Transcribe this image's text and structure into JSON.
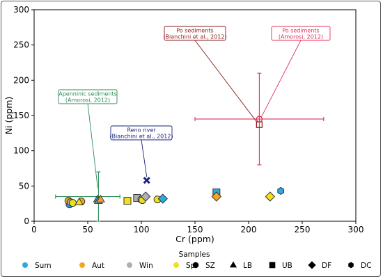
{
  "chart_data": {
    "type": "scatter",
    "xlabel": "Cr (ppm)",
    "ylabel": "Ni (ppm)",
    "xlim": [
      0,
      300
    ],
    "ylim": [
      0,
      300
    ],
    "xticks": [
      "0",
      "50",
      "100",
      "150",
      "200",
      "250",
      "300"
    ],
    "yticks": [
      "0",
      "50",
      "100",
      "150",
      "200",
      "250",
      "300"
    ],
    "grid": false,
    "legend": {
      "title": "Samples",
      "placement": "bottom",
      "seasons": [
        {
          "label": "Sum",
          "color": "#29abe2"
        },
        {
          "label": "Aut",
          "color": "#f5a623"
        },
        {
          "label": "Win",
          "color": "#b0b0b0"
        },
        {
          "label": "Spr",
          "color": "#f0e01a"
        }
      ],
      "sites": [
        {
          "label": "SZ",
          "shape": "circle"
        },
        {
          "label": "LB",
          "shape": "triangle"
        },
        {
          "label": "UB",
          "shape": "square"
        },
        {
          "label": "DF",
          "shape": "diamond"
        },
        {
          "label": "DC",
          "shape": "hexagon"
        }
      ]
    },
    "points": [
      {
        "x": 33,
        "y": 24,
        "season": "Sum",
        "site": "SZ"
      },
      {
        "x": 32,
        "y": 29,
        "season": "Aut",
        "site": "SZ"
      },
      {
        "x": 34,
        "y": 27,
        "season": "Win",
        "site": "SZ"
      },
      {
        "x": 36,
        "y": 26,
        "season": "Spr",
        "site": "SZ"
      },
      {
        "x": 44,
        "y": 28,
        "season": "Aut",
        "site": "SZ"
      },
      {
        "x": 42,
        "y": 27,
        "season": "Spr",
        "site": "LB"
      },
      {
        "x": 59,
        "y": 31,
        "season": "Sum",
        "site": "LB"
      },
      {
        "x": 60,
        "y": 29,
        "season": "Win",
        "site": "LB"
      },
      {
        "x": 62,
        "y": 31,
        "season": "Aut",
        "site": "LB"
      },
      {
        "x": 87,
        "y": 29,
        "season": "Spr",
        "site": "UB"
      },
      {
        "x": 96,
        "y": 33,
        "season": "Win",
        "site": "UB"
      },
      {
        "x": 100,
        "y": 31,
        "season": "Win",
        "site": "SZ"
      },
      {
        "x": 101,
        "y": 30,
        "season": "Spr",
        "site": "SZ"
      },
      {
        "x": 104,
        "y": 35,
        "season": "Win",
        "site": "DF"
      },
      {
        "x": 115,
        "y": 31,
        "season": "Spr",
        "site": "SZ"
      },
      {
        "x": 120,
        "y": 32,
        "season": "Sum",
        "site": "DF"
      },
      {
        "x": 170,
        "y": 41,
        "season": "Sum",
        "site": "UB"
      },
      {
        "x": 170,
        "y": 35,
        "season": "Aut",
        "site": "DF"
      },
      {
        "x": 220,
        "y": 35,
        "season": "Spr",
        "site": "DF"
      },
      {
        "x": 230,
        "y": 43,
        "season": "Sum",
        "site": "DC"
      }
    ],
    "references": [
      {
        "name": "Apenninic sediments (Amorosi, 2012)",
        "x": 60,
        "y": 35,
        "xerr": [
          40,
          20
        ],
        "yerr": [
          35,
          35
        ],
        "color": "#2e8b57",
        "marker": "cross"
      },
      {
        "name": "Reno river (Bianchini et al., 2012)",
        "x": 105,
        "y": 58,
        "color": "#1a237e",
        "marker": "x"
      },
      {
        "name": "Po sediments (Bianchini et al., 2012)",
        "x": 210,
        "y": 137,
        "color": "#8b1a1a",
        "marker": "square-open"
      },
      {
        "name": "Po sediments (Amorosi, 2012)",
        "x": 210,
        "y": 145,
        "xerr": [
          60,
          60
        ],
        "yerr": [
          65,
          65
        ],
        "color": "#e0305a",
        "marker": "circle-open"
      }
    ],
    "annotations": [
      {
        "line1": "Apenninic sediments",
        "line2": "(Amorosi, 2012)",
        "color": "#2e8b57"
      },
      {
        "line1": "Reno river",
        "line2": "(Bianchini et al., 2012)",
        "color": "#1a237e"
      },
      {
        "line1": "Po sediments",
        "line2": "(Bianchini et al., 2012)",
        "color": "#8b1a1a"
      },
      {
        "line1": "Po sediments",
        "line2": "(Amorosi, 2012)",
        "color": "#e0305a"
      }
    ]
  }
}
